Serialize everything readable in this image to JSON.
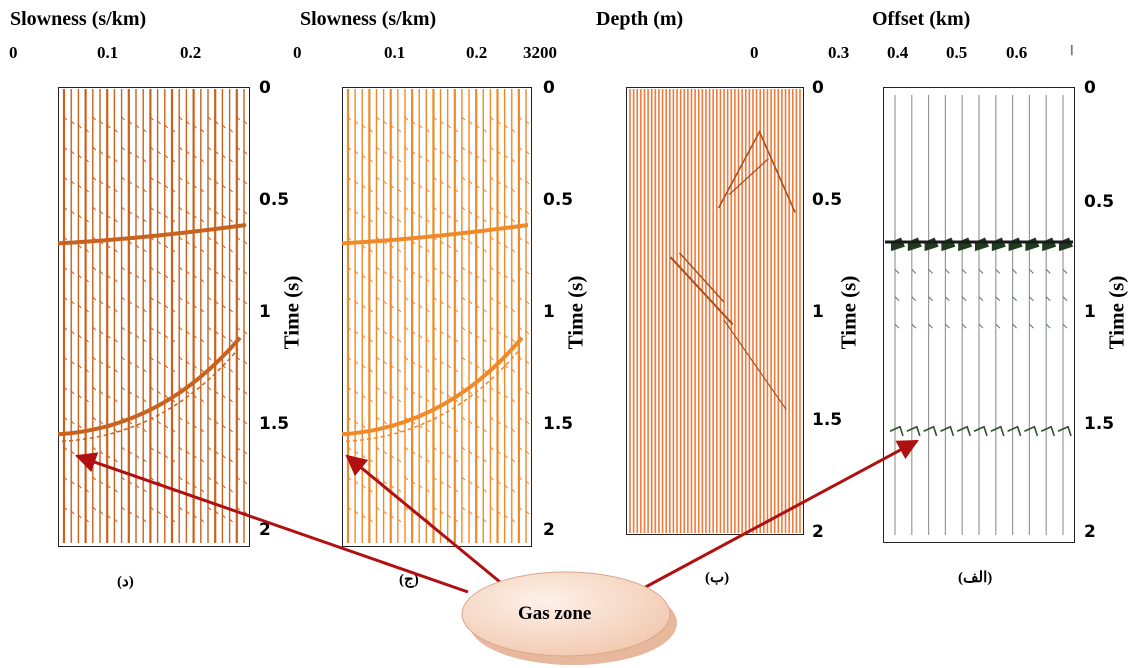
{
  "panels": [
    {
      "id": "d",
      "header": "Slowness (s/km)",
      "top_ticks": [
        "0",
        "0.1",
        "0.2"
      ],
      "time_ticks": [
        "0",
        "0.5",
        "1",
        "1.5",
        "2"
      ],
      "axis_title": "Time (s)",
      "caption": "(د)",
      "trace_color": "#c8621e"
    },
    {
      "id": "c",
      "header": "Slowness (s/km)",
      "top_ticks": [
        "0",
        "0.1",
        "0.2",
        "3200"
      ],
      "time_ticks": [
        "0",
        "0.5",
        "1",
        "1.5",
        "2"
      ],
      "axis_title": "Time (s)",
      "caption": "(ج)",
      "trace_color": "#f08a28"
    },
    {
      "id": "b",
      "header": "Depth (m)",
      "top_ticks": [
        "0",
        "0.3"
      ],
      "time_ticks": [
        "0",
        "0.5",
        "1",
        "1.5",
        "2"
      ],
      "axis_title": "Time (s)",
      "caption": "(ب)",
      "trace_color": "#f07a3c"
    },
    {
      "id": "a",
      "header": "Offset (km)",
      "top_ticks": [
        "0.4",
        "0.5",
        "0.6",
        "ا"
      ],
      "time_ticks": [
        "0",
        "0.5",
        "1",
        "1.5",
        "2"
      ],
      "axis_title": "Time (s)",
      "caption": "(الف)",
      "trace_color": "#7a7a7a"
    }
  ],
  "callout": {
    "label": "Gas zone",
    "fill": "#f7dccb",
    "arrow_color": "#b01010"
  }
}
